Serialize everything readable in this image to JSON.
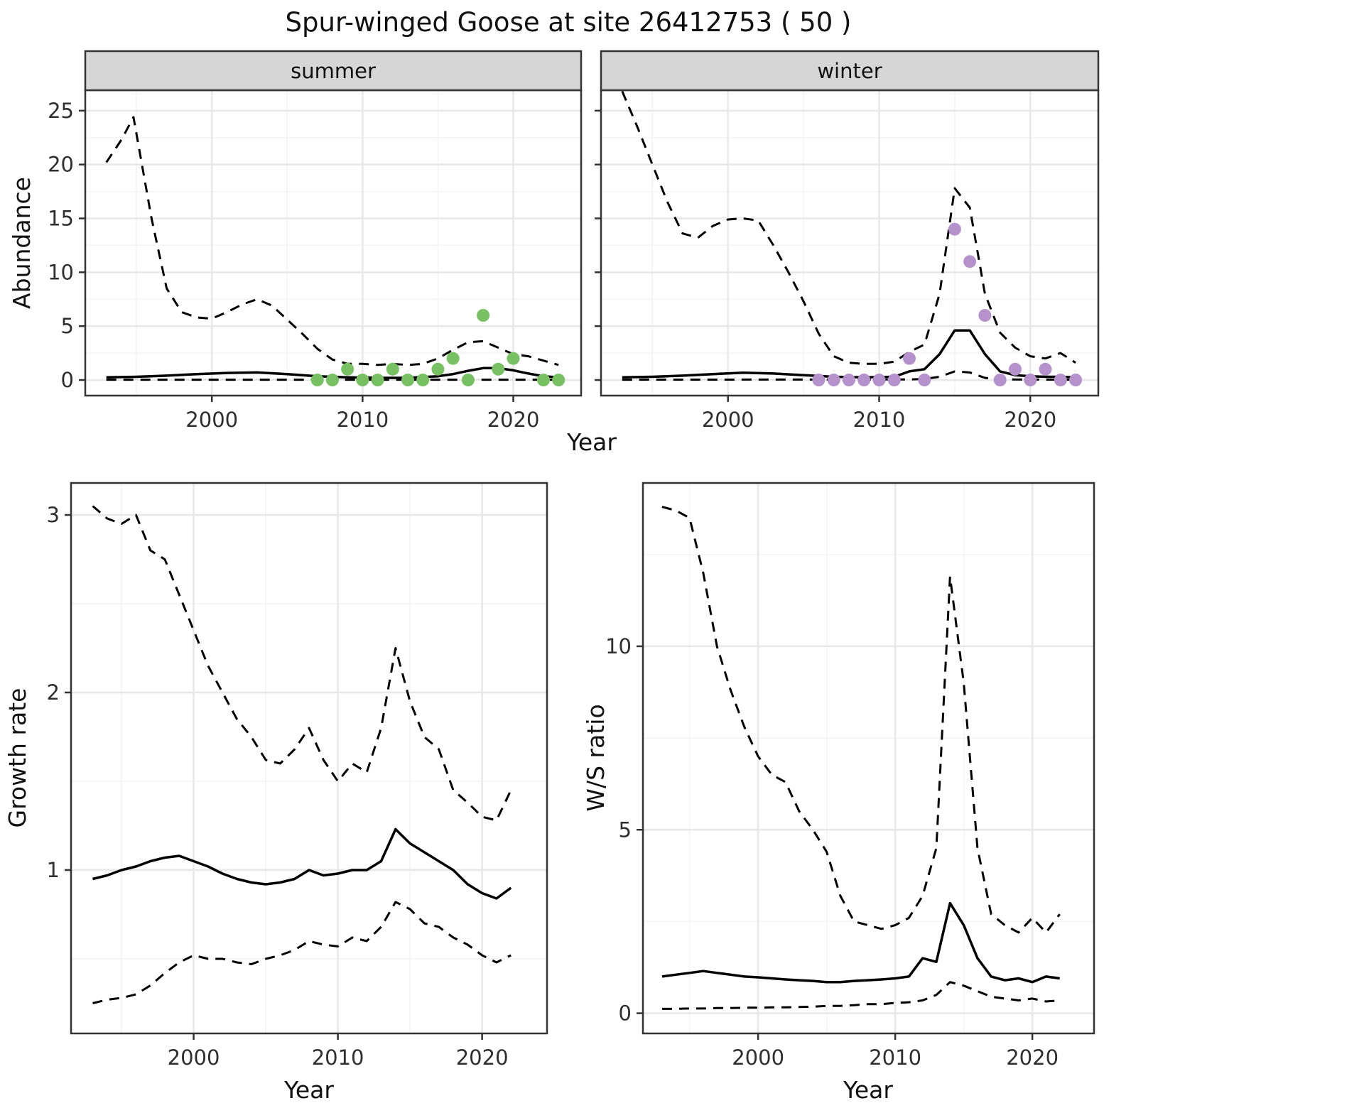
{
  "title": "Spur-winged Goose at site 26412753 ( 50 )",
  "colors": {
    "summer_points": "#78c162",
    "winter_points": "#b592cb",
    "line": "#000000",
    "grid_major": "#e8e8e8",
    "grid_minor": "#f3f3f3",
    "strip_bg": "#d6d6d6",
    "panel_border": "#333333",
    "panel_bg": "#ffffff"
  },
  "chart_data": [
    {
      "id": "abundance-summer",
      "type": "line",
      "facet_label": "summer",
      "ylabel": "Abundance",
      "xlabel": "Year",
      "xlim": [
        1991.6,
        2024.5
      ],
      "ylim": [
        -1.45,
        26.9
      ],
      "xticks": [
        2000,
        2010,
        2020
      ],
      "yticks": [
        0,
        5,
        10,
        15,
        20,
        25
      ],
      "xticks_minor": [
        1995,
        2005,
        2015
      ],
      "yticks_minor": [
        2.5,
        7.5,
        12.5,
        17.5,
        22.5
      ],
      "grid": true,
      "legend": "none",
      "series": [
        {
          "name": "upper-95ci",
          "style": "dashed",
          "x": [
            1993,
            1994,
            1994.8,
            1996,
            1997,
            1998,
            1999,
            2000,
            2001,
            2002,
            2003,
            2004,
            2005,
            2006,
            2007,
            2008,
            2009,
            2010,
            2011,
            2012,
            2013,
            2014,
            2015,
            2016,
            2017,
            2018,
            2019,
            2020,
            2021,
            2022,
            2023
          ],
          "y": [
            20.2,
            22.3,
            24.4,
            15.0,
            8.5,
            6.3,
            5.8,
            5.7,
            6.3,
            7.0,
            7.5,
            6.9,
            5.6,
            4.3,
            2.9,
            1.9,
            1.5,
            1.5,
            1.4,
            1.5,
            1.4,
            1.5,
            2.0,
            2.8,
            3.5,
            3.6,
            3.0,
            2.4,
            2.2,
            1.8,
            1.4
          ]
        },
        {
          "name": "mean",
          "style": "solid",
          "x": [
            1993,
            1995,
            1997,
            1999,
            2001,
            2003,
            2005,
            2007,
            2009,
            2011,
            2013,
            2015,
            2016,
            2017,
            2018,
            2019,
            2020,
            2021,
            2022,
            2023
          ],
          "y": [
            0.25,
            0.3,
            0.4,
            0.55,
            0.65,
            0.7,
            0.55,
            0.35,
            0.25,
            0.2,
            0.2,
            0.35,
            0.55,
            0.85,
            1.1,
            1.1,
            0.9,
            0.6,
            0.35,
            0.25
          ]
        },
        {
          "name": "lower-95ci",
          "style": "dashed",
          "x": [
            1993,
            2023
          ],
          "y": [
            0.03,
            0.03
          ]
        }
      ],
      "points": {
        "name": "observed-counts-summer",
        "color_key": "summer_points",
        "x": [
          2007,
          2008,
          2009,
          2010,
          2011,
          2012,
          2013,
          2014,
          2015,
          2016,
          2017,
          2018,
          2019,
          2020,
          2022,
          2023
        ],
        "y": [
          0,
          0,
          1,
          0,
          0,
          1,
          0,
          0,
          1,
          2,
          0,
          6,
          1,
          2,
          0,
          0
        ]
      }
    },
    {
      "id": "abundance-winter",
      "type": "line",
      "facet_label": "winter",
      "ylabel": "Abundance",
      "xlabel": "Year",
      "xlim": [
        1991.6,
        2024.5
      ],
      "ylim": [
        -1.45,
        26.9
      ],
      "xticks": [
        2000,
        2010,
        2020
      ],
      "yticks": [
        0,
        5,
        10,
        15,
        20,
        25
      ],
      "xticks_minor": [
        1995,
        2005,
        2015
      ],
      "yticks_minor": [
        2.5,
        7.5,
        12.5,
        17.5,
        22.5
      ],
      "grid": true,
      "legend": "none",
      "series": [
        {
          "name": "upper-95ci",
          "style": "dashed",
          "x": [
            1993,
            1994,
            1995,
            1996,
            1997,
            1998,
            1999,
            2000,
            2001,
            2002,
            2003,
            2004,
            2005,
            2006,
            2007,
            2008,
            2009,
            2010,
            2011,
            2012,
            2013,
            2014,
            2015,
            2016,
            2017,
            2018,
            2019,
            2020,
            2021,
            2022,
            2023
          ],
          "y": [
            26.8,
            23.5,
            20.0,
            16.5,
            13.6,
            13.2,
            14.3,
            14.9,
            15.0,
            14.8,
            12.5,
            10.0,
            7.3,
            4.3,
            2.2,
            1.6,
            1.5,
            1.5,
            1.7,
            2.6,
            3.3,
            8.0,
            17.8,
            16.0,
            8.0,
            4.4,
            3.0,
            2.2,
            2.0,
            2.5,
            1.6
          ]
        },
        {
          "name": "mean",
          "style": "solid",
          "x": [
            1993,
            1995,
            1997,
            1999,
            2001,
            2003,
            2005,
            2007,
            2009,
            2011,
            2012,
            2013,
            2014,
            2015,
            2016,
            2017,
            2018,
            2019,
            2020,
            2021,
            2022,
            2023
          ],
          "y": [
            0.25,
            0.3,
            0.4,
            0.55,
            0.68,
            0.6,
            0.45,
            0.3,
            0.25,
            0.3,
            0.8,
            1.0,
            2.4,
            4.6,
            4.6,
            2.4,
            0.8,
            0.45,
            0.35,
            0.3,
            0.3,
            0.25
          ]
        },
        {
          "name": "lower-95ci",
          "style": "dashed",
          "x": [
            1993,
            2012,
            2013,
            2014,
            2015,
            2016,
            2017,
            2018,
            2023
          ],
          "y": [
            0.03,
            0.05,
            0.1,
            0.3,
            0.8,
            0.7,
            0.2,
            0.05,
            0.03
          ]
        }
      ],
      "points": {
        "name": "observed-counts-winter",
        "color_key": "winter_points",
        "x": [
          2006,
          2007,
          2008,
          2009,
          2010,
          2011,
          2012,
          2013,
          2015,
          2016,
          2017,
          2018,
          2019,
          2020,
          2021,
          2022,
          2023
        ],
        "y": [
          0,
          0,
          0,
          0,
          0,
          0,
          2,
          0,
          14,
          11,
          6,
          0,
          1,
          0,
          1,
          0,
          0
        ]
      }
    },
    {
      "id": "growth-rate",
      "type": "line",
      "facet_label": "",
      "ylabel": "Growth rate",
      "xlabel": "Year",
      "xlim": [
        1991.5,
        2024.5
      ],
      "ylim": [
        0.08,
        3.18
      ],
      "xticks": [
        2000,
        2010,
        2020
      ],
      "yticks": [
        1,
        2,
        3
      ],
      "xticks_minor": [
        1995,
        2005,
        2015
      ],
      "yticks_minor": [
        0.5,
        1.5,
        2.5
      ],
      "grid": true,
      "legend": "none",
      "series": [
        {
          "name": "upper-95ci",
          "style": "dashed",
          "x": [
            1993,
            1994,
            1995,
            1996,
            1997,
            1998,
            1999,
            2000,
            2001,
            2002,
            2003,
            2004,
            2005,
            2006,
            2007,
            2008,
            2009,
            2010,
            2011,
            2012,
            2013,
            2014,
            2015,
            2016,
            2017,
            2018,
            2019,
            2020,
            2021,
            2022
          ],
          "y": [
            3.05,
            2.98,
            2.95,
            3.0,
            2.8,
            2.75,
            2.55,
            2.35,
            2.15,
            2.0,
            1.85,
            1.75,
            1.62,
            1.6,
            1.68,
            1.8,
            1.62,
            1.5,
            1.6,
            1.55,
            1.8,
            2.25,
            1.95,
            1.75,
            1.68,
            1.45,
            1.38,
            1.3,
            1.28,
            1.45
          ]
        },
        {
          "name": "mean",
          "style": "solid",
          "x": [
            1993,
            1994,
            1995,
            1996,
            1997,
            1998,
            1999,
            2000,
            2001,
            2002,
            2003,
            2004,
            2005,
            2006,
            2007,
            2008,
            2009,
            2010,
            2011,
            2012,
            2013,
            2014,
            2015,
            2016,
            2017,
            2018,
            2019,
            2020,
            2021,
            2022
          ],
          "y": [
            0.95,
            0.97,
            1.0,
            1.02,
            1.05,
            1.07,
            1.08,
            1.05,
            1.02,
            0.98,
            0.95,
            0.93,
            0.92,
            0.93,
            0.95,
            1.0,
            0.97,
            0.98,
            1.0,
            1.0,
            1.05,
            1.23,
            1.15,
            1.1,
            1.05,
            1.0,
            0.92,
            0.87,
            0.84,
            0.9
          ]
        },
        {
          "name": "lower-95ci",
          "style": "dashed",
          "x": [
            1993,
            1994,
            1995,
            1996,
            1997,
            1998,
            1999,
            2000,
            2001,
            2002,
            2003,
            2004,
            2005,
            2006,
            2007,
            2008,
            2009,
            2010,
            2011,
            2012,
            2013,
            2014,
            2015,
            2016,
            2017,
            2018,
            2019,
            2020,
            2021,
            2022
          ],
          "y": [
            0.25,
            0.27,
            0.28,
            0.3,
            0.35,
            0.42,
            0.48,
            0.52,
            0.5,
            0.5,
            0.48,
            0.47,
            0.5,
            0.52,
            0.55,
            0.6,
            0.58,
            0.57,
            0.62,
            0.6,
            0.68,
            0.82,
            0.78,
            0.7,
            0.68,
            0.62,
            0.58,
            0.52,
            0.48,
            0.52
          ]
        }
      ]
    },
    {
      "id": "ws-ratio",
      "type": "line",
      "facet_label": "",
      "ylabel": "W/S ratio",
      "xlabel": "Year",
      "xlim": [
        1991.6,
        2024.5
      ],
      "ylim": [
        -0.55,
        14.45
      ],
      "xticks": [
        2000,
        2010,
        2020
      ],
      "yticks": [
        0,
        5,
        10
      ],
      "xticks_minor": [
        1995,
        2005,
        2015
      ],
      "yticks_minor": [
        2.5,
        7.5,
        12.5
      ],
      "grid": true,
      "legend": "none",
      "series": [
        {
          "name": "upper-95ci",
          "style": "dashed",
          "x": [
            1993,
            1994,
            1995,
            1996,
            1997,
            1998,
            1999,
            2000,
            2001,
            2002,
            2003,
            2004,
            2005,
            2006,
            2007,
            2008,
            2009,
            2010,
            2011,
            2012,
            2013,
            2014,
            2015,
            2016,
            2017,
            2018,
            2019,
            2020,
            2021,
            2022
          ],
          "y": [
            13.8,
            13.7,
            13.5,
            12.0,
            10.0,
            8.8,
            7.8,
            7.0,
            6.5,
            6.3,
            5.5,
            5.0,
            4.4,
            3.2,
            2.5,
            2.4,
            2.3,
            2.4,
            2.6,
            3.2,
            4.5,
            11.9,
            9.0,
            4.5,
            2.7,
            2.4,
            2.2,
            2.6,
            2.2,
            2.7
          ]
        },
        {
          "name": "mean",
          "style": "solid",
          "x": [
            1993,
            1994,
            1995,
            1996,
            1997,
            1998,
            1999,
            2000,
            2001,
            2002,
            2003,
            2004,
            2005,
            2006,
            2007,
            2008,
            2009,
            2010,
            2011,
            2012,
            2013,
            2014,
            2015,
            2016,
            2017,
            2018,
            2019,
            2020,
            2021,
            2022
          ],
          "y": [
            1.0,
            1.05,
            1.1,
            1.15,
            1.1,
            1.05,
            1.0,
            0.98,
            0.95,
            0.92,
            0.9,
            0.88,
            0.85,
            0.85,
            0.88,
            0.9,
            0.92,
            0.95,
            1.0,
            1.5,
            1.4,
            3.0,
            2.4,
            1.5,
            1.0,
            0.9,
            0.95,
            0.85,
            1.0,
            0.95
          ]
        },
        {
          "name": "lower-95ci",
          "style": "dashed",
          "x": [
            1993,
            1994,
            1995,
            1996,
            1997,
            1998,
            1999,
            2000,
            2001,
            2002,
            2003,
            2004,
            2005,
            2006,
            2007,
            2008,
            2009,
            2010,
            2011,
            2012,
            2013,
            2014,
            2015,
            2016,
            2017,
            2018,
            2019,
            2020,
            2021,
            2022
          ],
          "y": [
            0.12,
            0.12,
            0.13,
            0.13,
            0.14,
            0.14,
            0.15,
            0.15,
            0.16,
            0.16,
            0.17,
            0.18,
            0.2,
            0.2,
            0.22,
            0.25,
            0.25,
            0.28,
            0.3,
            0.35,
            0.5,
            0.85,
            0.75,
            0.6,
            0.45,
            0.4,
            0.35,
            0.4,
            0.32,
            0.35
          ]
        }
      ]
    }
  ]
}
